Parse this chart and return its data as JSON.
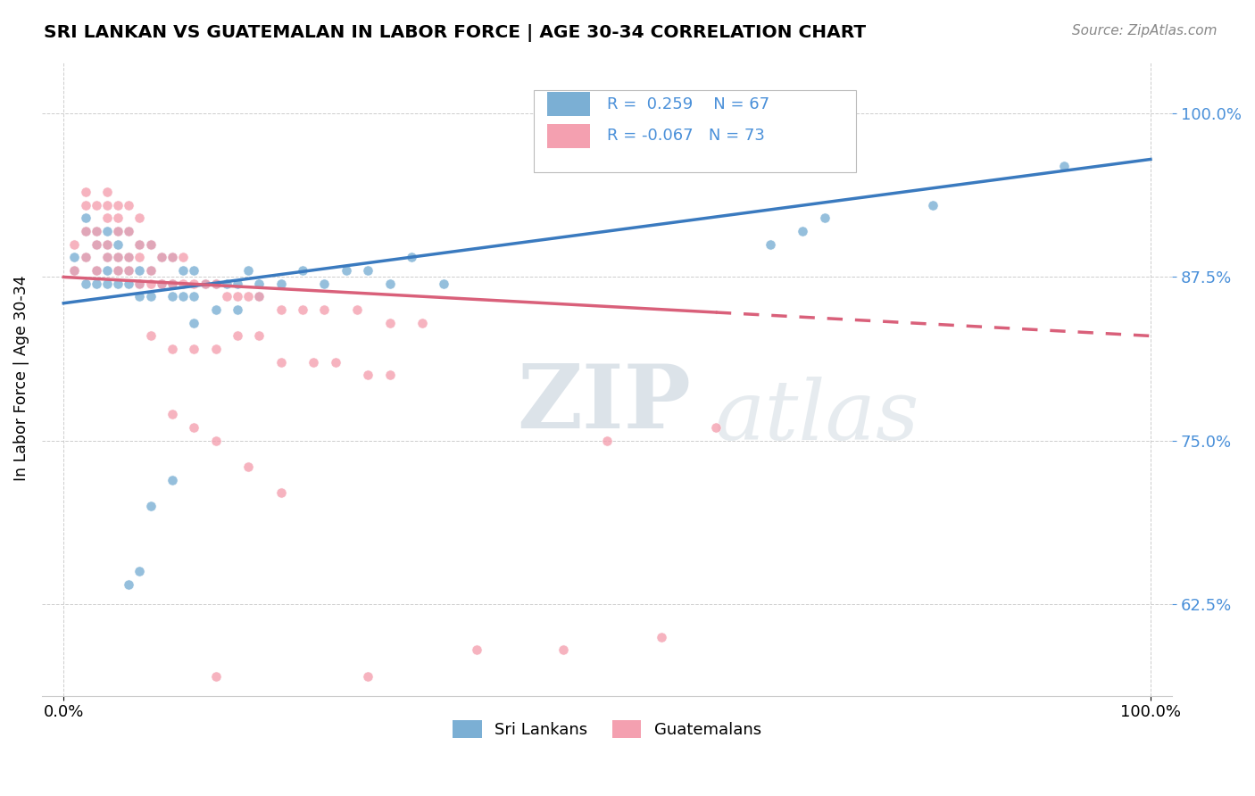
{
  "title": "SRI LANKAN VS GUATEMALAN IN LABOR FORCE | AGE 30-34 CORRELATION CHART",
  "source_text": "Source: ZipAtlas.com",
  "ylabel": "In Labor Force | Age 30-34",
  "xlim": [
    -0.02,
    1.02
  ],
  "ylim": [
    0.555,
    1.04
  ],
  "ytick_values": [
    0.625,
    0.75,
    0.875,
    1.0
  ],
  "xtick_values": [
    0.0,
    1.0
  ],
  "sri_lankan_color": "#7bafd4",
  "guatemalan_color": "#f4a0b0",
  "sri_lankan_R": "0.259",
  "sri_lankan_N": "67",
  "guatemalan_R": "-0.067",
  "guatemalan_N": "73",
  "trend_sri_color": "#3a7abf",
  "trend_guat_color": "#d9607a",
  "watermark_zip": "ZIP",
  "watermark_atlas": "atlas",
  "sri_lankan_x": [
    0.01,
    0.01,
    0.02,
    0.02,
    0.02,
    0.02,
    0.03,
    0.03,
    0.03,
    0.03,
    0.04,
    0.04,
    0.04,
    0.04,
    0.04,
    0.05,
    0.05,
    0.05,
    0.05,
    0.05,
    0.06,
    0.06,
    0.06,
    0.06,
    0.07,
    0.07,
    0.07,
    0.07,
    0.08,
    0.08,
    0.08,
    0.09,
    0.09,
    0.1,
    0.1,
    0.1,
    0.11,
    0.11,
    0.12,
    0.12,
    0.13,
    0.14,
    0.15,
    0.16,
    0.17,
    0.18,
    0.2,
    0.22,
    0.24,
    0.26,
    0.28,
    0.3,
    0.32,
    0.35,
    0.12,
    0.14,
    0.16,
    0.18,
    0.08,
    0.1,
    0.06,
    0.07,
    0.65,
    0.68,
    0.7,
    0.8,
    0.92
  ],
  "sri_lankan_y": [
    0.88,
    0.89,
    0.87,
    0.89,
    0.91,
    0.92,
    0.87,
    0.88,
    0.9,
    0.91,
    0.87,
    0.88,
    0.89,
    0.9,
    0.91,
    0.87,
    0.88,
    0.89,
    0.9,
    0.91,
    0.87,
    0.88,
    0.89,
    0.91,
    0.86,
    0.87,
    0.88,
    0.9,
    0.86,
    0.88,
    0.9,
    0.87,
    0.89,
    0.86,
    0.87,
    0.89,
    0.86,
    0.88,
    0.86,
    0.88,
    0.87,
    0.87,
    0.87,
    0.87,
    0.88,
    0.87,
    0.87,
    0.88,
    0.87,
    0.88,
    0.88,
    0.87,
    0.89,
    0.87,
    0.84,
    0.85,
    0.85,
    0.86,
    0.7,
    0.72,
    0.64,
    0.65,
    0.9,
    0.91,
    0.92,
    0.93,
    0.96
  ],
  "guatemalan_x": [
    0.01,
    0.01,
    0.02,
    0.02,
    0.02,
    0.02,
    0.03,
    0.03,
    0.03,
    0.03,
    0.04,
    0.04,
    0.04,
    0.04,
    0.04,
    0.05,
    0.05,
    0.05,
    0.05,
    0.05,
    0.06,
    0.06,
    0.06,
    0.06,
    0.07,
    0.07,
    0.07,
    0.07,
    0.08,
    0.08,
    0.08,
    0.09,
    0.09,
    0.1,
    0.1,
    0.11,
    0.11,
    0.12,
    0.13,
    0.14,
    0.15,
    0.16,
    0.17,
    0.18,
    0.2,
    0.22,
    0.24,
    0.27,
    0.3,
    0.33,
    0.08,
    0.1,
    0.12,
    0.14,
    0.16,
    0.18,
    0.2,
    0.23,
    0.25,
    0.28,
    0.3,
    0.1,
    0.12,
    0.14,
    0.17,
    0.2,
    0.14,
    0.28,
    0.5,
    0.6,
    0.38,
    0.46,
    0.55
  ],
  "guatemalan_y": [
    0.88,
    0.9,
    0.89,
    0.91,
    0.93,
    0.94,
    0.88,
    0.9,
    0.91,
    0.93,
    0.89,
    0.9,
    0.92,
    0.93,
    0.94,
    0.88,
    0.89,
    0.91,
    0.92,
    0.93,
    0.88,
    0.89,
    0.91,
    0.93,
    0.87,
    0.89,
    0.9,
    0.92,
    0.87,
    0.88,
    0.9,
    0.87,
    0.89,
    0.87,
    0.89,
    0.87,
    0.89,
    0.87,
    0.87,
    0.87,
    0.86,
    0.86,
    0.86,
    0.86,
    0.85,
    0.85,
    0.85,
    0.85,
    0.84,
    0.84,
    0.83,
    0.82,
    0.82,
    0.82,
    0.83,
    0.83,
    0.81,
    0.81,
    0.81,
    0.8,
    0.8,
    0.77,
    0.76,
    0.75,
    0.73,
    0.71,
    0.57,
    0.57,
    0.75,
    0.76,
    0.59,
    0.59,
    0.6
  ],
  "trend_sri_x0": 0.0,
  "trend_sri_x1": 1.0,
  "trend_sri_y0": 0.855,
  "trend_sri_y1": 0.965,
  "trend_guat_x0": 0.0,
  "trend_guat_x1": 1.0,
  "trend_guat_y0": 0.875,
  "trend_guat_y1": 0.83,
  "trend_guat_solid_end": 0.6
}
